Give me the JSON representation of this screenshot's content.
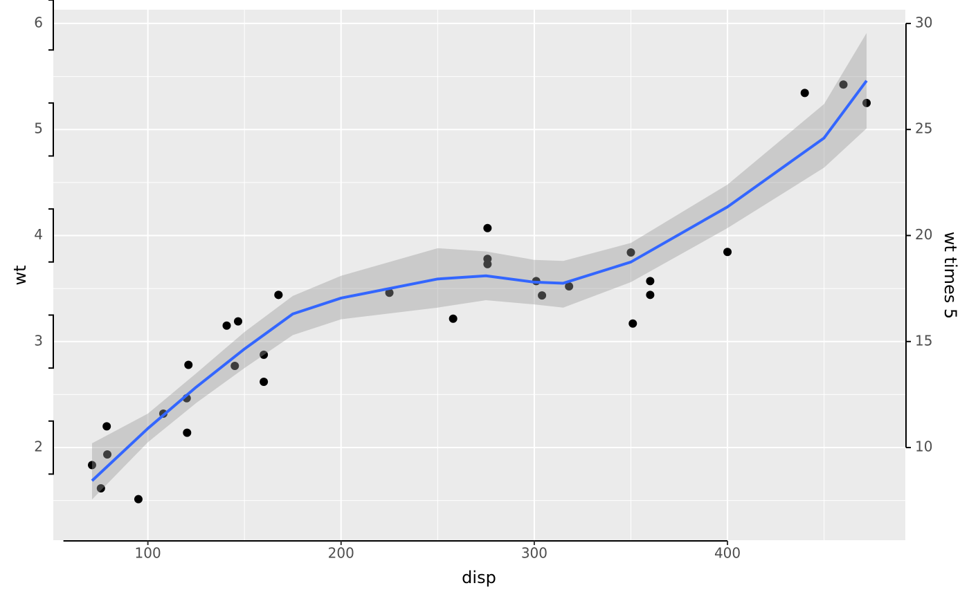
{
  "chart_data": {
    "type": "scatter",
    "x_label": "disp",
    "y_label": "wt",
    "y2_label": "wt times 5",
    "x": [
      160,
      160,
      108,
      258,
      360,
      225,
      360,
      146.7,
      140.8,
      167.6,
      167.6,
      275.8,
      275.8,
      275.8,
      472,
      460,
      440,
      78.7,
      75.7,
      71.1,
      120.1,
      318,
      304,
      350,
      400,
      79,
      120.3,
      95.1,
      351,
      145,
      301,
      121
    ],
    "values": [
      2.62,
      2.875,
      2.32,
      3.215,
      3.44,
      3.46,
      3.57,
      3.19,
      3.15,
      3.44,
      3.44,
      4.07,
      3.73,
      3.78,
      5.25,
      5.424,
      5.345,
      2.2,
      1.615,
      1.835,
      2.465,
      3.52,
      3.435,
      3.84,
      3.845,
      1.935,
      2.14,
      1.513,
      3.17,
      2.77,
      3.57,
      2.78
    ],
    "color": "#000000",
    "smooth": {
      "color": "#3366ff",
      "band_color": "#999999",
      "x": [
        71.1,
        100,
        125,
        150,
        175,
        200,
        250,
        275,
        300,
        315,
        350,
        400,
        450,
        472
      ],
      "y": [
        1.687,
        2.18,
        2.57,
        2.93,
        3.26,
        3.41,
        3.59,
        3.62,
        3.56,
        3.55,
        3.75,
        4.27,
        4.92,
        5.46
      ],
      "ymin": [
        1.51,
        2.05,
        2.42,
        2.75,
        3.06,
        3.21,
        3.32,
        3.39,
        3.35,
        3.32,
        3.56,
        4.07,
        4.64,
        5.01
      ],
      "ymax": [
        2.04,
        2.32,
        2.7,
        3.09,
        3.43,
        3.62,
        3.88,
        3.85,
        3.77,
        3.76,
        3.93,
        4.48,
        5.24,
        5.91
      ]
    },
    "xlim": [
      51.05,
      492.05
    ],
    "ylim": [
      1.126,
      6.13
    ],
    "y2lim": [
      5.63,
      30.65
    ],
    "xticks": [
      100,
      200,
      300,
      400
    ],
    "yticks": [
      2,
      3,
      4,
      5,
      6
    ],
    "y2ticks": [
      10,
      15,
      20,
      25,
      30
    ],
    "grid": true
  }
}
